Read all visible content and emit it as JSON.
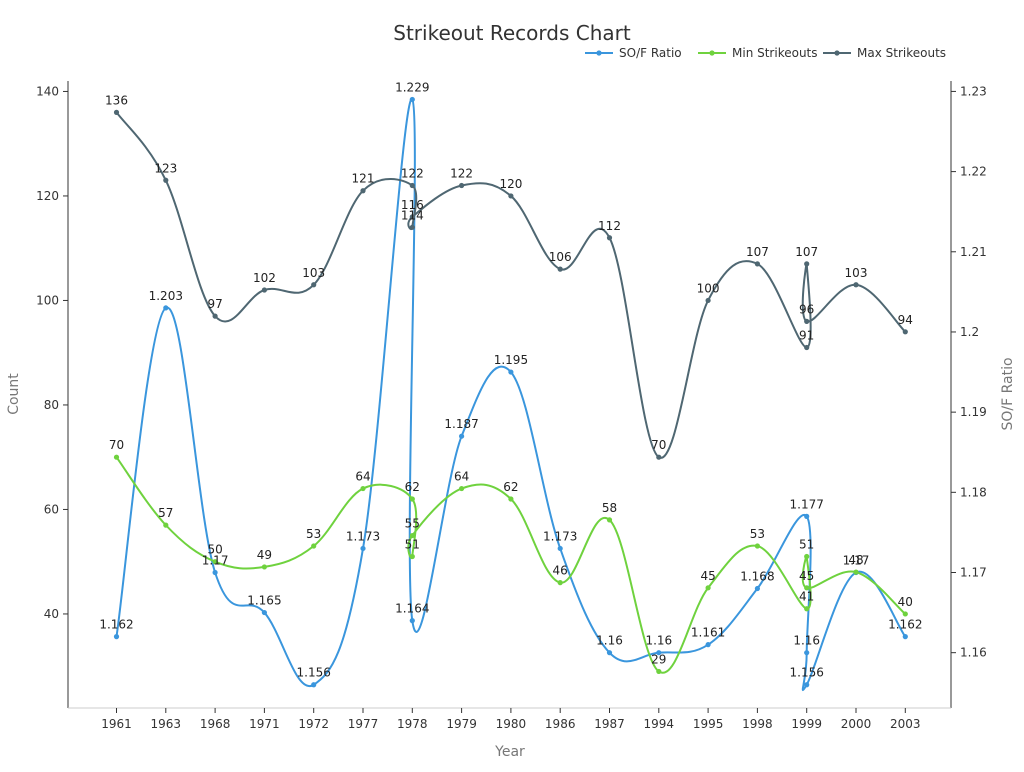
{
  "chart_data": {
    "type": "line",
    "title": "Strikeout Records Chart",
    "xlabel": "Year",
    "ylabel_left": "Count",
    "ylabel_right": "SO/F Ratio",
    "categories": [
      "1961",
      "1963",
      "1968",
      "1971",
      "1972",
      "1977",
      "1978",
      "1979",
      "1980",
      "1986",
      "1987",
      "1994",
      "1995",
      "1998",
      "1999",
      "2000",
      "2003"
    ],
    "ylim_left": [
      22,
      142
    ],
    "yticks_left": [
      40,
      60,
      80,
      100,
      120,
      140
    ],
    "ylim_right": [
      1.1531,
      1.2313
    ],
    "yticks_right": [
      1.16,
      1.17,
      1.18,
      1.19,
      1.2,
      1.21,
      1.22,
      1.23
    ],
    "legend_position": "top-right",
    "grid": false,
    "series": [
      {
        "name": "SO/F Ratio",
        "axis": "right",
        "color": "#3a96dd",
        "points": [
          {
            "x": "1961",
            "y": 1.162,
            "label": "1.162"
          },
          {
            "x": "1963",
            "y": 1.203,
            "label": "1.203"
          },
          {
            "x": "1968",
            "y": 1.17,
            "label": "1.17"
          },
          {
            "x": "1971",
            "y": 1.165,
            "label": "1.165"
          },
          {
            "x": "1972",
            "y": 1.156,
            "label": "1.156"
          },
          {
            "x": "1977",
            "y": 1.173,
            "label": "1.173"
          },
          {
            "x": "1978",
            "y": 1.229,
            "label": "1.229"
          },
          {
            "x": "1978",
            "y": 1.164,
            "label": "1.164"
          },
          {
            "x": "1979",
            "y": 1.187,
            "label": "1.187"
          },
          {
            "x": "1980",
            "y": 1.195,
            "label": "1.195"
          },
          {
            "x": "1986",
            "y": 1.173,
            "label": "1.173"
          },
          {
            "x": "1987",
            "y": 1.16,
            "label": "1.16"
          },
          {
            "x": "1994",
            "y": 1.16,
            "label": "1.16"
          },
          {
            "x": "1995",
            "y": 1.161,
            "label": "1.161"
          },
          {
            "x": "1998",
            "y": 1.168,
            "label": "1.168"
          },
          {
            "x": "1999",
            "y": 1.177,
            "label": "1.177"
          },
          {
            "x": "1999",
            "y": 1.16,
            "label": "1.16"
          },
          {
            "x": "1999",
            "y": 1.156,
            "label": "1.156"
          },
          {
            "x": "2000",
            "y": 1.17,
            "label": "1.17"
          },
          {
            "x": "2003",
            "y": 1.162,
            "label": "1.162"
          }
        ]
      },
      {
        "name": "Min Strikeouts",
        "axis": "left",
        "color": "#6fd23e",
        "points": [
          {
            "x": "1961",
            "y": 70,
            "label": "70"
          },
          {
            "x": "1963",
            "y": 57,
            "label": "57"
          },
          {
            "x": "1968",
            "y": 50,
            "label": "50"
          },
          {
            "x": "1971",
            "y": 49,
            "label": "49"
          },
          {
            "x": "1972",
            "y": 53,
            "label": "53"
          },
          {
            "x": "1977",
            "y": 64,
            "label": "64"
          },
          {
            "x": "1978",
            "y": 62,
            "label": "62"
          },
          {
            "x": "1978",
            "y": 51,
            "label": "51"
          },
          {
            "x": "1978",
            "y": 55,
            "label": "55"
          },
          {
            "x": "1979",
            "y": 64,
            "label": "64"
          },
          {
            "x": "1980",
            "y": 62,
            "label": "62"
          },
          {
            "x": "1986",
            "y": 46,
            "label": "46"
          },
          {
            "x": "1987",
            "y": 58,
            "label": "58"
          },
          {
            "x": "1994",
            "y": 29,
            "label": "29"
          },
          {
            "x": "1995",
            "y": 45,
            "label": "45"
          },
          {
            "x": "1998",
            "y": 53,
            "label": "53"
          },
          {
            "x": "1999",
            "y": 41,
            "label": "41"
          },
          {
            "x": "1999",
            "y": 51,
            "label": "51"
          },
          {
            "x": "1999",
            "y": 45,
            "label": "45"
          },
          {
            "x": "2000",
            "y": 48,
            "label": "48"
          },
          {
            "x": "2003",
            "y": 40,
            "label": "40"
          }
        ]
      },
      {
        "name": "Max Strikeouts",
        "axis": "left",
        "color": "#4f6772",
        "points": [
          {
            "x": "1961",
            "y": 136,
            "label": "136"
          },
          {
            "x": "1963",
            "y": 123,
            "label": "123"
          },
          {
            "x": "1968",
            "y": 97,
            "label": "97"
          },
          {
            "x": "1971",
            "y": 102,
            "label": "102"
          },
          {
            "x": "1972",
            "y": 103,
            "label": "103"
          },
          {
            "x": "1977",
            "y": 121,
            "label": "121"
          },
          {
            "x": "1978",
            "y": 122,
            "label": "122"
          },
          {
            "x": "1978",
            "y": 114,
            "label": "114"
          },
          {
            "x": "1978",
            "y": 116,
            "label": "116"
          },
          {
            "x": "1979",
            "y": 122,
            "label": "122"
          },
          {
            "x": "1980",
            "y": 120,
            "label": "120"
          },
          {
            "x": "1986",
            "y": 106,
            "label": "106"
          },
          {
            "x": "1987",
            "y": 112,
            "label": "112"
          },
          {
            "x": "1994",
            "y": 70,
            "label": "70"
          },
          {
            "x": "1995",
            "y": 100,
            "label": "100"
          },
          {
            "x": "1998",
            "y": 107,
            "label": "107"
          },
          {
            "x": "1999",
            "y": 91,
            "label": "91"
          },
          {
            "x": "1999",
            "y": 107,
            "label": "107"
          },
          {
            "x": "1999",
            "y": 96,
            "label": "96"
          },
          {
            "x": "2000",
            "y": 103,
            "label": "103"
          },
          {
            "x": "2003",
            "y": 94,
            "label": "94"
          }
        ]
      }
    ]
  }
}
